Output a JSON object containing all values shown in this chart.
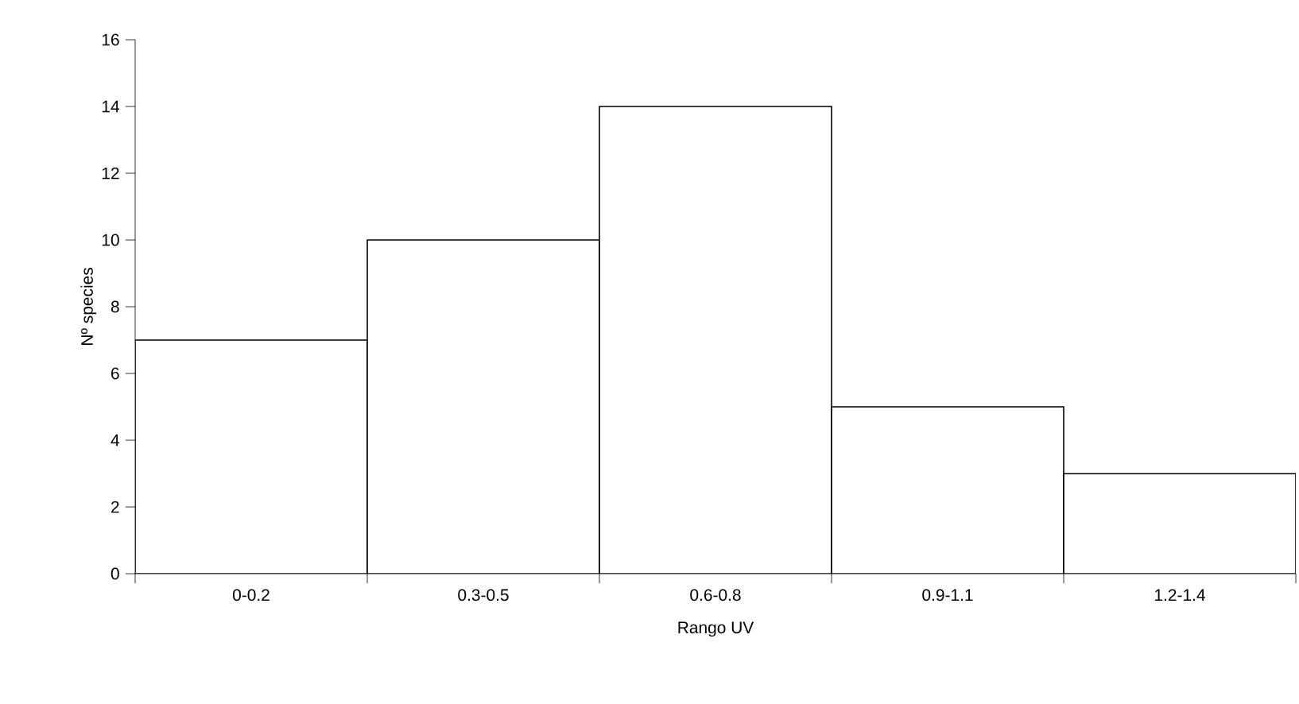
{
  "chart_data": {
    "type": "bar",
    "xlabel": "Rango UV",
    "ylabel": "Nº species",
    "categories": [
      "0-0.2",
      "0.3-0.5",
      "0.6-0.8",
      "0.9-1.1",
      "1.2-1.4"
    ],
    "values": [
      7,
      10,
      14,
      5,
      3
    ],
    "color": "#ffffff",
    "ylim": [
      0,
      16
    ],
    "yticks": [
      0,
      2,
      4,
      6,
      8,
      10,
      12,
      14,
      16
    ]
  }
}
